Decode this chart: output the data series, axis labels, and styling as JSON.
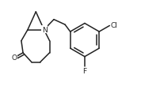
{
  "background_color": "#ffffff",
  "line_color": "#222222",
  "line_width": 1.1,
  "font_size_label": 6.0,
  "xlim": [
    0.0,
    1.55
  ],
  "ylim": [
    0.0,
    1.05
  ]
}
